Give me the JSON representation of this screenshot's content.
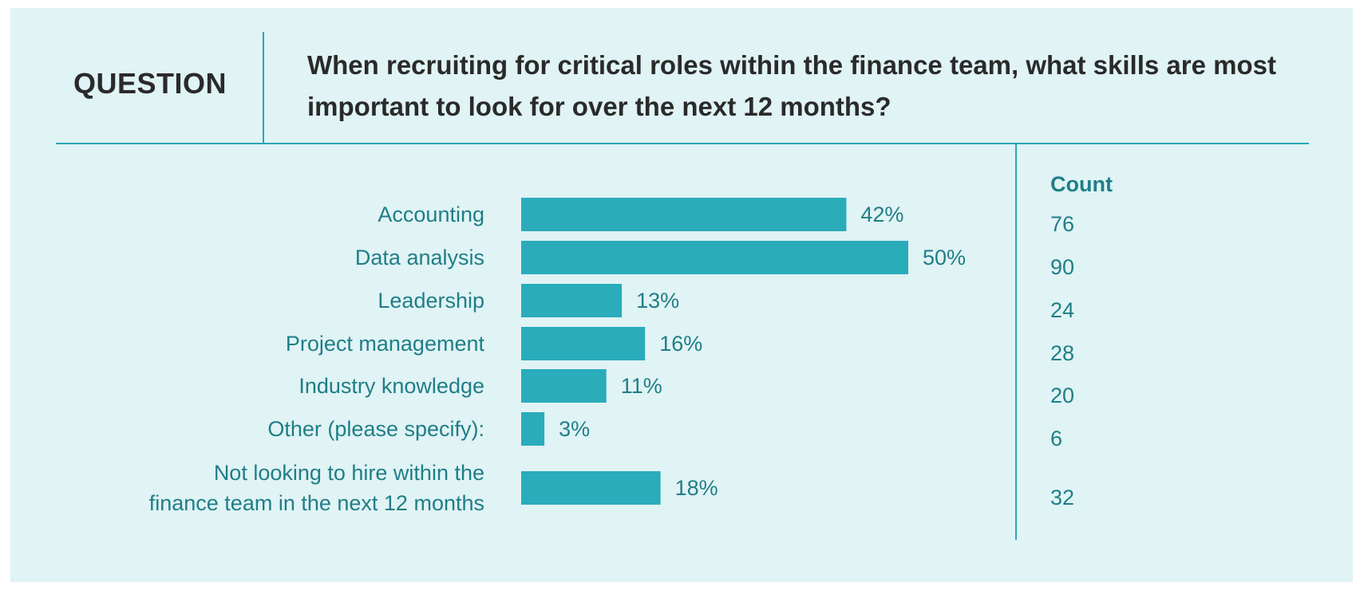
{
  "header": {
    "label": "QUESTION",
    "question": "When recruiting for critical roles within the finance team, what skills are most important to look for over the next 12 months?"
  },
  "count_header": "Count",
  "colors": {
    "bar": "#2aacba",
    "text": "#1f7e87",
    "panel": "#e0f3f5",
    "divider": "#2aa7b5"
  },
  "chart_data": {
    "type": "bar",
    "orientation": "horizontal",
    "categories": [
      "Accounting",
      "Data analysis",
      "Leadership",
      "Project management",
      "Industry knowledge",
      "Other (please specify):",
      "Not looking to hire within the finance team in the next 12 months"
    ],
    "category_lines": [
      [
        "Accounting"
      ],
      [
        "Data analysis"
      ],
      [
        "Leadership"
      ],
      [
        "Project management"
      ],
      [
        "Industry knowledge"
      ],
      [
        "Other (please specify):"
      ],
      [
        "Not looking to hire within the",
        "finance team in the next 12 months"
      ]
    ],
    "values": [
      42,
      50,
      13,
      16,
      11,
      3,
      18
    ],
    "value_labels": [
      "42%",
      "50%",
      "13%",
      "16%",
      "11%",
      "3%",
      "18%"
    ],
    "counts": [
      76,
      90,
      24,
      28,
      20,
      6,
      32
    ],
    "unit": "%"
  }
}
